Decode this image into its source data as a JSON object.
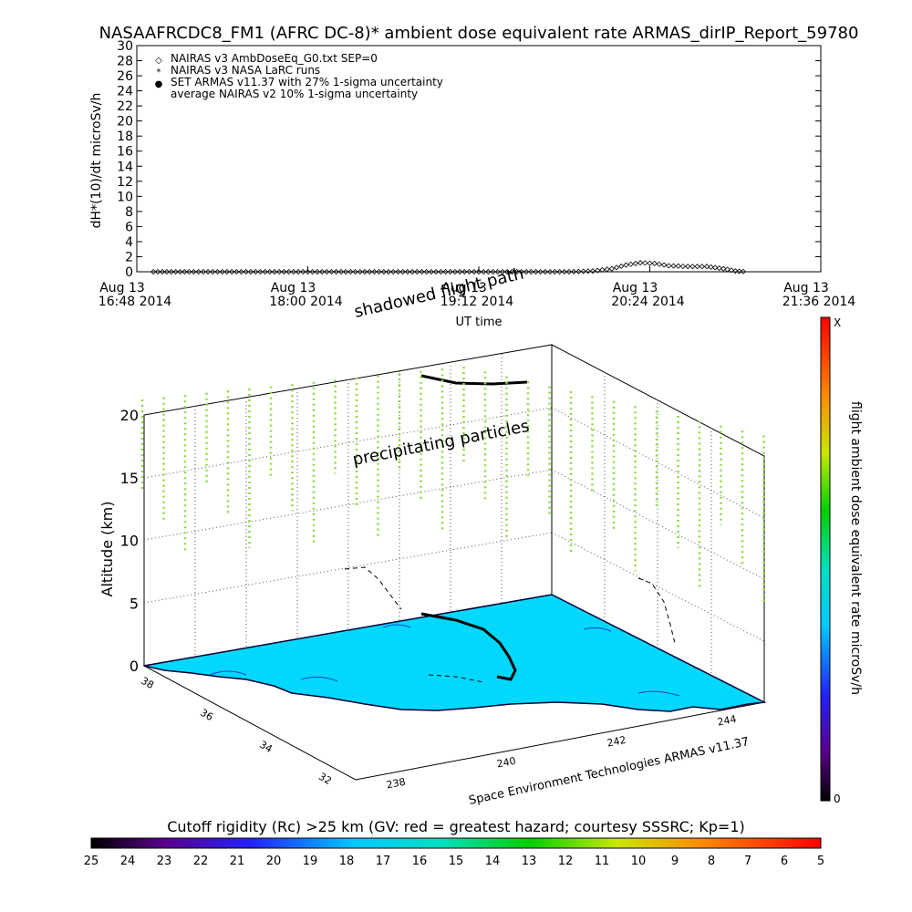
{
  "page": {
    "title": "NASAAFRCDC8_FM1 (AFRC DC-8)* ambient dose equivalent rate ARMAS_dirIP_Report_59780"
  },
  "chart_data": [
    {
      "type": "scatter",
      "ylabel": "dH*(10)/dt microSv/h",
      "xlabel": "UT time",
      "ylim": [
        0,
        30
      ],
      "xlim": [
        "2014-08-13T16:48",
        "2014-08-13T21:36"
      ],
      "yticks": [
        "0",
        "2",
        "4",
        "6",
        "8",
        "10",
        "12",
        "14",
        "16",
        "18",
        "20",
        "22",
        "24",
        "26",
        "28",
        "30"
      ],
      "xticks": [
        {
          "line1": "Aug 13",
          "line2": "16:48 2014"
        },
        {
          "line1": "Aug 13",
          "line2": "18:00 2014"
        },
        {
          "line1": "Aug 13",
          "line2": "19:12 2014"
        },
        {
          "line1": "Aug 13",
          "line2": "20:24 2014"
        },
        {
          "line1": "Aug 13",
          "line2": "21:36 2014"
        }
      ],
      "legend": [
        {
          "symbol": "◇",
          "label": "NAIRAS v3 AmbDoseEq_G0.txt SEP=0"
        },
        {
          "symbol": "*",
          "label": "NAIRAS v3 NASA LaRC runs"
        },
        {
          "symbol": "●",
          "label": "SET ARMAS v11.37 with 27% 1-sigma uncertainty",
          "color": "#1f3fd0"
        },
        {
          "symbol": "",
          "label": "average NAIRAS v2 10% 1-sigma uncertainty"
        }
      ],
      "series": [
        {
          "name": "NAIRAS v3 AmbDoseEq_G0.txt SEP=0",
          "x": [
            "16:55",
            "17:10",
            "17:30",
            "17:50",
            "18:10",
            "18:30",
            "18:50",
            "19:10",
            "19:30",
            "19:50",
            "20:00",
            "20:08",
            "20:14",
            "20:20",
            "20:26",
            "20:32",
            "20:40",
            "20:48",
            "20:55",
            "21:00",
            "21:05"
          ],
          "y": [
            0,
            0,
            0,
            0,
            0,
            0,
            0,
            0,
            0,
            0,
            0.1,
            0.4,
            0.9,
            1.2,
            1.1,
            0.8,
            0.7,
            0.7,
            0.4,
            0.1,
            0
          ]
        }
      ]
    },
    {
      "type": "3d-trajectory",
      "annotations": [
        "shadowed flight path",
        "precipitating particles"
      ],
      "zlabel": "Altitude (km)",
      "zticks": [
        "0",
        "5",
        "10",
        "15",
        "20"
      ],
      "lat_ticks": [
        "38",
        "36",
        "34",
        "32"
      ],
      "lon_ticks": [
        "238",
        "240",
        "242",
        "244"
      ],
      "footer": "Space Environment Technologies ARMAS v11.37",
      "colorbar_label": "flight ambient dose equivalent rate microSv/h",
      "colorbar_max": "X",
      "colorbar_min": "0"
    }
  ],
  "bottom_bar": {
    "title": "Cutoff rigidity (Rc) >25 km (GV: red = greatest hazard; courtesy SSSRC; Kp=1)",
    "ticks": [
      "25",
      "24",
      "23",
      "22",
      "21",
      "20",
      "19",
      "18",
      "17",
      "16",
      "15",
      "14",
      "13",
      "12",
      "11",
      "10",
      "9",
      "8",
      "7",
      "6",
      "5"
    ]
  },
  "colors": {
    "map": "#00d8ff",
    "legend_blue": "#1f3fd0",
    "particles": "#8ed840"
  }
}
